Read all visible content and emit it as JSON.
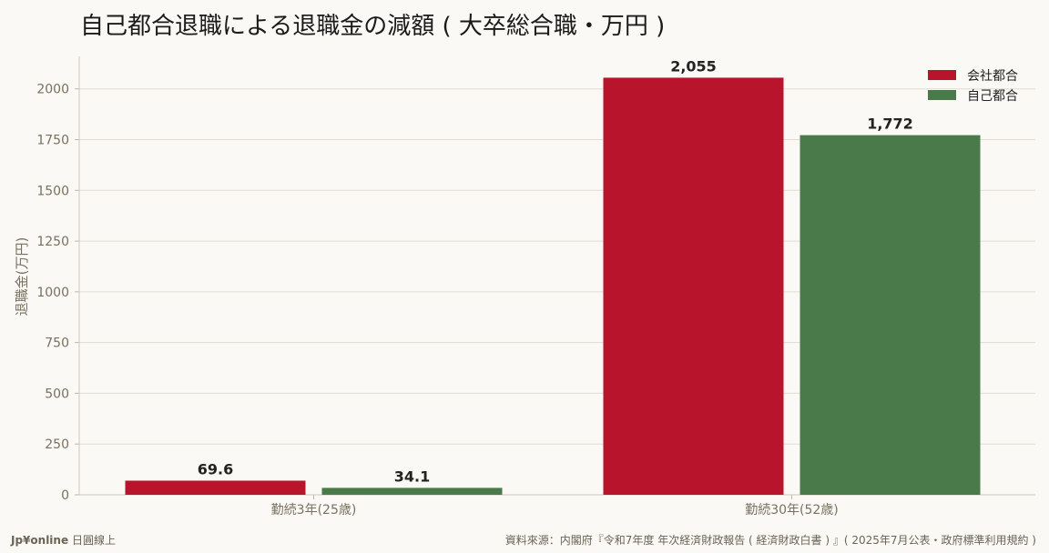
{
  "chart_data": {
    "type": "bar",
    "title": "自己都合退職による退職金の減額 ( 大卒総合職・万円 )",
    "ylabel": "退職金(万円)",
    "xlabel": "",
    "categories": [
      "勤続3年(25歳)",
      "勤続30年(52歳)"
    ],
    "series": [
      {
        "name": "会社都合",
        "values": [
          69.6,
          2055
        ],
        "labels": [
          "69.6",
          "2,055"
        ],
        "color": "#b8152c"
      },
      {
        "name": "自己都合",
        "values": [
          34.1,
          1772
        ],
        "labels": [
          "34.1",
          "1,772"
        ],
        "color": "#4a7a4a"
      }
    ],
    "ylim": [
      0,
      2160
    ],
    "yticks": [
      0,
      250,
      500,
      750,
      1000,
      1250,
      1500,
      1750,
      2000
    ],
    "grid": true,
    "legend": "top-right"
  },
  "footer": {
    "brand": "Jp¥online",
    "brand_suffix": "日圓線上",
    "source": "資料來源：内閣府『令和7年度 年次経済財政報告 ( 経済財政白書 ) 』( 2025年7月公表・政府標準利用規約 )"
  }
}
